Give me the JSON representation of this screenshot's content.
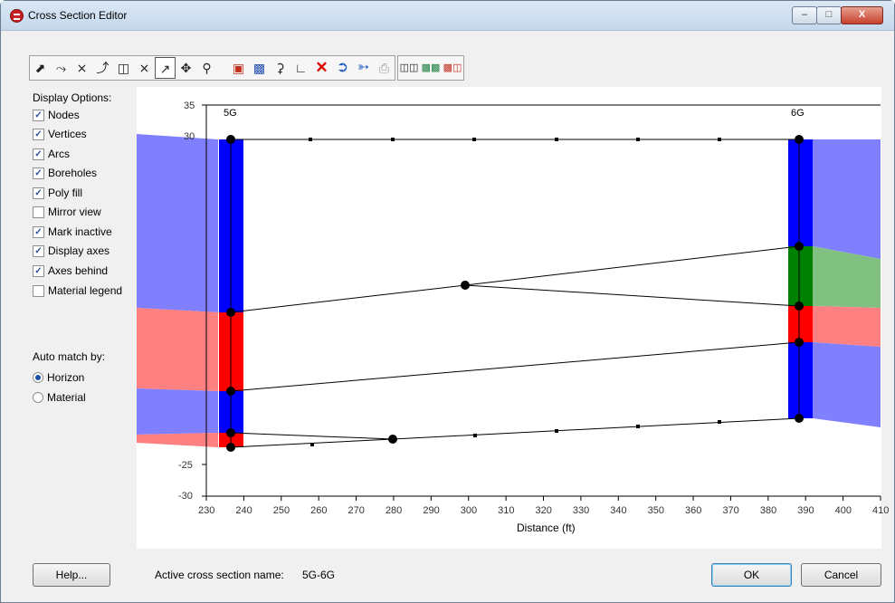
{
  "window": {
    "title": "Cross Section Editor",
    "controls": [
      "minimize",
      "maximize",
      "close"
    ]
  },
  "toolbar": {
    "groups": [
      [
        "select-arrow-icon",
        "select-vertex-icon",
        "delete-vertex-icon",
        "insert-vertex-icon",
        "select-polygon-icon",
        "split-arc-icon",
        "create-arc-icon",
        "pan-icon",
        "zoom-icon",
        "frame-icon",
        "color-fill-icon",
        "zoom-z-icon",
        "axes-icon",
        "delete-icon",
        "back-icon",
        "forward-icon",
        "print-icon"
      ],
      [
        "layers-a-icon",
        "layers-b-icon",
        "layers-c-icon"
      ]
    ]
  },
  "display_options": {
    "label": "Display Options:",
    "items": [
      {
        "label": "Nodes",
        "checked": true
      },
      {
        "label": "Vertices",
        "checked": true
      },
      {
        "label": "Arcs",
        "checked": true
      },
      {
        "label": "Boreholes",
        "checked": true
      },
      {
        "label": "Poly fill",
        "checked": true
      },
      {
        "label": "Mirror view",
        "checked": false
      },
      {
        "label": "Mark inactive",
        "checked": true
      },
      {
        "label": "Display axes",
        "checked": true
      },
      {
        "label": "Axes behind",
        "checked": true
      },
      {
        "label": "Material legend",
        "checked": false
      }
    ]
  },
  "auto_match": {
    "label": "Auto match by:",
    "options": [
      {
        "label": "Horizon",
        "selected": true
      },
      {
        "label": "Material",
        "selected": false
      }
    ]
  },
  "plot": {
    "xlabel": "Distance (ft)",
    "xticks": [
      "230",
      "240",
      "250",
      "260",
      "270",
      "280",
      "290",
      "300",
      "310",
      "320",
      "330",
      "340",
      "350",
      "360",
      "370",
      "380",
      "390",
      "400",
      "410"
    ],
    "yticks": [
      "35",
      "30",
      "-25",
      "-30"
    ],
    "boreholes": [
      "5G",
      "6G"
    ],
    "colors": {
      "blue": "#0000ff",
      "red": "#ff0000",
      "green": "#008000",
      "light_blue": "#8080ff",
      "light_red": "#ff8080",
      "light_green": "#80c080"
    }
  },
  "footer": {
    "help_label": "Help...",
    "active_label": "Active cross section name:",
    "active_value": "5G-6G",
    "ok_label": "OK",
    "cancel_label": "Cancel"
  }
}
